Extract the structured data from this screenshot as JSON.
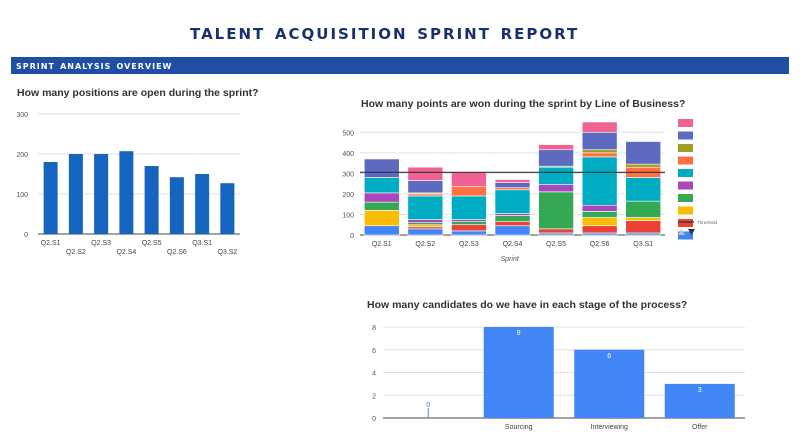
{
  "header": {
    "title": "Talent Acquisition Sprint Report",
    "section": "Sprint Analysis Overview"
  },
  "chart_data": [
    {
      "type": "bar",
      "title": "How many positions are open during the sprint?",
      "categories": [
        "Q2.S1",
        "Q2.S2",
        "Q2.S3",
        "Q2.S4",
        "Q2.S5",
        "Q2.S6",
        "Q3.S1",
        "Q3.S2"
      ],
      "values": [
        180,
        200,
        200,
        207,
        170,
        142,
        150,
        127
      ],
      "ylim": [
        0,
        300
      ],
      "yticks": [
        0,
        100,
        200,
        300
      ],
      "color": "#1565c0",
      "grid": true
    },
    {
      "type": "bar",
      "stacked": true,
      "title": "How many points are won during the sprint by Line of Business?",
      "xlabel": "Sprint",
      "categories": [
        "Q2.S1",
        "Q2.S2",
        "Q2.S3",
        "Q2.S4",
        "Q2.S5",
        "Q2.S6",
        "Q3.S1"
      ],
      "ylim": [
        0,
        550
      ],
      "yticks": [
        0,
        100,
        200,
        300,
        400,
        500
      ],
      "threshold": 305,
      "threshold_label": "Threshold",
      "legend_position": "right",
      "colors": [
        "#4285f4",
        "#ea4335",
        "#fbbc04",
        "#34a853",
        "#ab47bc",
        "#00acc1",
        "#ff7043",
        "#9e9d24",
        "#5c6bc0",
        "#f06292"
      ],
      "series": [
        {
          "values": [
            45,
            30,
            20,
            45,
            10,
            10,
            10
          ]
        },
        {
          "values": [
            0,
            10,
            30,
            20,
            20,
            35,
            60
          ]
        },
        {
          "values": [
            75,
            10,
            0,
            0,
            0,
            40,
            15
          ]
        },
        {
          "values": [
            40,
            10,
            15,
            30,
            180,
            30,
            80
          ]
        },
        {
          "values": [
            45,
            15,
            10,
            10,
            35,
            30,
            0
          ]
        },
        {
          "values": [
            75,
            115,
            115,
            115,
            85,
            235,
            115
          ]
        },
        {
          "values": [
            0,
            10,
            45,
            10,
            0,
            20,
            50
          ]
        },
        {
          "values": [
            0,
            5,
            0,
            0,
            5,
            15,
            15
          ]
        },
        {
          "values": [
            90,
            60,
            0,
            25,
            80,
            85,
            110
          ]
        },
        {
          "values": [
            0,
            65,
            70,
            15,
            25,
            50,
            0
          ]
        }
      ]
    },
    {
      "type": "bar",
      "title": "How many candidates do we have in each stage of the process?",
      "categories": [
        "",
        "Sourcing",
        "Interviewing",
        "Offer"
      ],
      "values": [
        0,
        8,
        6,
        3
      ],
      "data_labels": [
        "0",
        "8",
        "6",
        "3"
      ],
      "ylim": [
        0,
        8
      ],
      "yticks": [
        0,
        2,
        4,
        6,
        8
      ],
      "color": "#4285f4",
      "grid": true
    }
  ]
}
